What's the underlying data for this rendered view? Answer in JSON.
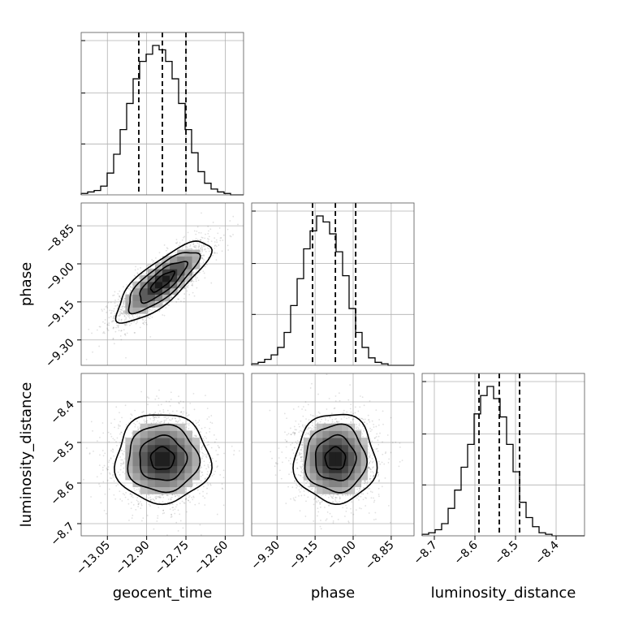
{
  "chart_data": {
    "type": "corner",
    "parameters": [
      {
        "name": "geocent_time",
        "range": [
          -13.15,
          -12.53
        ],
        "ticks": [
          -13.05,
          -12.9,
          -12.75,
          -12.6
        ],
        "tick_labels": [
          "−13.05",
          "−12.90",
          "−12.75",
          "−12.60"
        ],
        "quantiles": [
          -12.93,
          -12.84,
          -12.75
        ]
      },
      {
        "name": "phase",
        "range": [
          -9.4,
          -8.76
        ],
        "ticks": [
          -9.3,
          -9.15,
          -9.0,
          -8.85
        ],
        "tick_labels": [
          "−9.30",
          "−9.15",
          "−9.00",
          "−8.85"
        ],
        "quantiles": [
          -9.16,
          -9.07,
          -8.99
        ]
      },
      {
        "name": "luminosity_distance",
        "range": [
          -8.73,
          -8.33
        ],
        "ticks": [
          -8.7,
          -8.6,
          -8.5,
          -8.4
        ],
        "tick_labels": [
          "−8.7",
          "−8.6",
          "−8.5",
          "−8.4"
        ],
        "quantiles": [
          -8.59,
          -8.54,
          -8.49
        ]
      }
    ],
    "histograms": [
      {
        "parameter": "geocent_time",
        "x_start": -13.15,
        "bin_width": 0.0248,
        "counts": [
          1,
          2,
          3,
          6,
          15,
          28,
          45,
          63,
          80,
          92,
          97,
          103,
          100,
          92,
          80,
          63,
          45,
          29,
          16,
          8,
          4,
          2,
          1,
          0,
          0
        ]
      },
      {
        "parameter": "phase",
        "x_start": -9.4,
        "bin_width": 0.0256,
        "counts": [
          1,
          2,
          4,
          7,
          12,
          22,
          40,
          58,
          78,
          90,
          100,
          96,
          88,
          76,
          60,
          38,
          22,
          12,
          5,
          2,
          1,
          0,
          0,
          0,
          0
        ]
      },
      {
        "parameter": "luminosity_distance",
        "x_start": -8.73,
        "bin_width": 0.016,
        "counts": [
          1,
          2,
          4,
          8,
          18,
          30,
          45,
          60,
          80,
          92,
          98,
          90,
          78,
          60,
          42,
          22,
          12,
          6,
          2,
          1,
          0,
          0,
          0,
          0,
          0
        ]
      }
    ],
    "joint": [
      {
        "x": "geocent_time",
        "y": "phase",
        "center": [
          -12.84,
          -9.07
        ],
        "sigma": [
          0.09,
          0.08
        ],
        "correlation": 0.8
      },
      {
        "x": "geocent_time",
        "y": "luminosity_distance",
        "center": [
          -12.84,
          -8.54
        ],
        "sigma": [
          0.09,
          0.055
        ],
        "correlation": 0.0
      },
      {
        "x": "phase",
        "y": "luminosity_distance",
        "center": [
          -9.07,
          -8.54
        ],
        "sigma": [
          0.08,
          0.055
        ],
        "correlation": 0.0
      }
    ],
    "contour_levels_sigma": [
      0.5,
      1.0,
      1.5,
      2.0
    ],
    "grid": true
  }
}
